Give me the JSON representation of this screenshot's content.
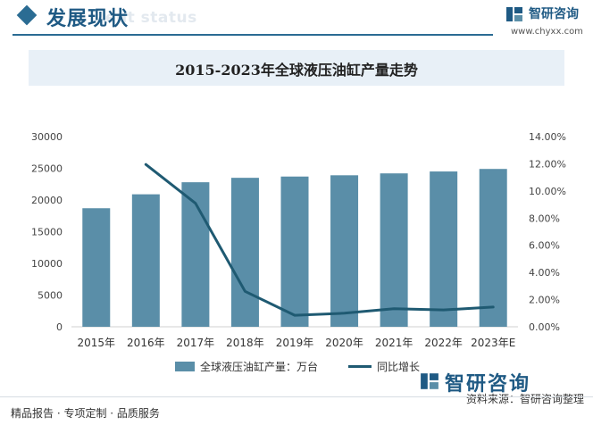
{
  "header": {
    "title": "发展现状",
    "subtitle": "ent status"
  },
  "brand": {
    "name": "智研咨询",
    "url": "www.chyxx.com"
  },
  "footer": {
    "left_text": "精品报告 · 专项定制 · 品质服务",
    "right_text": "资料来源：智研咨询整理",
    "brand_name": "智研咨询"
  },
  "colors": {
    "bar": "#5a8ea8",
    "line": "#1f5a72",
    "accent": "#1f5a84"
  },
  "chart_data": {
    "type": "bar",
    "title": "2015-2023年全球液压油缸产量走势",
    "categories": [
      "2015年",
      "2016年",
      "2017年",
      "2018年",
      "2019年",
      "2020年",
      "2021年",
      "2022年",
      "2023年E"
    ],
    "series": [
      {
        "name": "全球液压油缸产量：万台",
        "type": "bar",
        "axis": "left",
        "values": [
          18700,
          20900,
          22800,
          23500,
          23700,
          23900,
          24200,
          24500,
          24900
        ]
      },
      {
        "name": "同比增长",
        "type": "line",
        "axis": "right",
        "values": [
          null,
          0.1195,
          0.0909,
          0.0261,
          0.0085,
          0.01,
          0.0133,
          0.0124,
          0.0145
        ]
      }
    ],
    "y_left": {
      "min": 0,
      "max": 30000,
      "ticks": [
        "0",
        "5000",
        "10000",
        "15000",
        "20000",
        "25000",
        "30000"
      ]
    },
    "y_right": {
      "min": 0,
      "max": 0.14,
      "ticks": [
        "0.00%",
        "2.00%",
        "4.00%",
        "6.00%",
        "8.00%",
        "10.00%",
        "12.00%",
        "14.00%"
      ]
    },
    "grid": false,
    "legend_position": "bottom"
  }
}
